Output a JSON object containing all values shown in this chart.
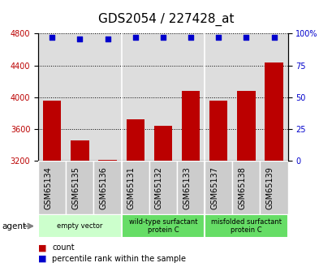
{
  "title": "GDS2054 / 227428_at",
  "categories": [
    "GSM65134",
    "GSM65135",
    "GSM65136",
    "GSM65131",
    "GSM65132",
    "GSM65133",
    "GSM65137",
    "GSM65138",
    "GSM65139"
  ],
  "bar_values": [
    3960,
    3460,
    3215,
    3720,
    3640,
    4080,
    3960,
    4080,
    4440
  ],
  "percentile_values": [
    97,
    96,
    96,
    97,
    97,
    97,
    97,
    97,
    97
  ],
  "ylim_left": [
    3200,
    4800
  ],
  "ylim_right": [
    0,
    100
  ],
  "yticks_left": [
    3200,
    3600,
    4000,
    4400,
    4800
  ],
  "yticks_right": [
    0,
    25,
    50,
    75,
    100
  ],
  "bar_color": "#bb0000",
  "dot_color": "#0000cc",
  "bar_bottom": 3200,
  "groups": [
    {
      "label": "empty vector",
      "start": 0,
      "end": 3,
      "color": "#ccffcc"
    },
    {
      "label": "wild-type surfactant\nprotein C",
      "start": 3,
      "end": 6,
      "color": "#66dd66"
    },
    {
      "label": "misfolded surfactant\nprotein C",
      "start": 6,
      "end": 9,
      "color": "#66dd66"
    }
  ],
  "legend_count_label": "count",
  "legend_pct_label": "percentile rank within the sample",
  "title_fontsize": 11,
  "tick_label_fontsize": 7,
  "plot_bg_color": "#dddddd",
  "sample_row_color": "#cccccc",
  "agent_label": "agent"
}
